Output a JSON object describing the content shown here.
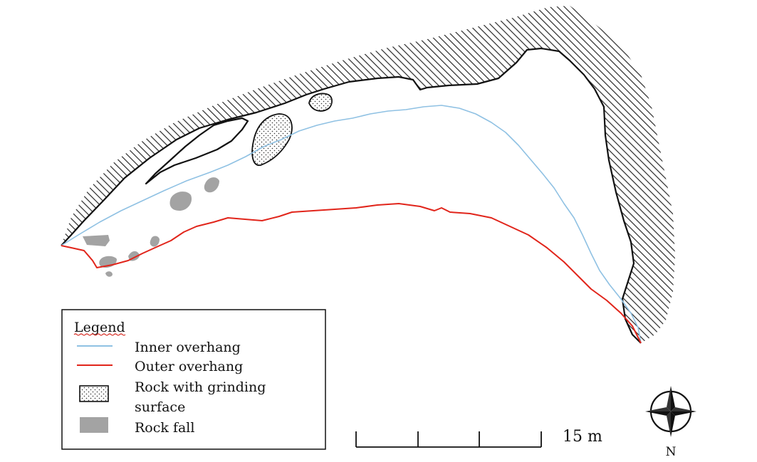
{
  "legend": {
    "title": "Legend",
    "items": [
      {
        "label": "Inner overhang",
        "symbol": "line",
        "color": "#8fc1e3"
      },
      {
        "label": "Outer overhang",
        "symbol": "line",
        "color": "#e1251b"
      },
      {
        "label_line1": "Rock with grinding",
        "label_line2": "surface",
        "symbol": "dotted-box"
      },
      {
        "label": "Rock fall",
        "symbol": "filled-box",
        "color": "#a3a3a3"
      }
    ]
  },
  "scale_bar": {
    "label": "15 m",
    "divisions": 4
  },
  "north_arrow": {
    "label": "N",
    "icon": "compass-rose-icon"
  },
  "colors": {
    "inner_overhang": "#8fc1e3",
    "outer_overhang": "#e1251b",
    "rock_fall": "#a3a3a3",
    "hatch": "#2a2a2a",
    "outline": "#111111"
  }
}
